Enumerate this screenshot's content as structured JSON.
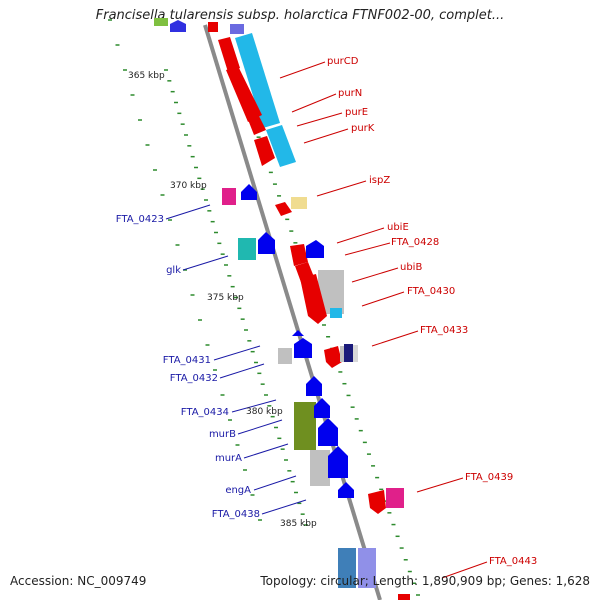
{
  "title": "Francisella tularensis subsp. holarctica FTNF002-00, complet...",
  "accession_label": "Accession: NC_009749",
  "summary_label": "Topology: circular; Length: 1,890,909 bp; Genes: 1,628",
  "colors": {
    "backbone": "#8a8a8a",
    "tick": "#2e8b2e",
    "label_red": "#cc0000",
    "label_blue": "#1a1aa6",
    "red": "#e60000",
    "blue": "#0000ee",
    "cyan": "#22b8e8",
    "magenta": "#e0208a",
    "teal": "#20b8b0",
    "olive": "#6f8f20",
    "grey": "#c0c0c0",
    "yellow": "#f0dc90",
    "steel": "#3f7fb8"
  },
  "kbp_labels": [
    "365 kbp",
    "370 kbp",
    "375 kbp",
    "380 kbp",
    "385 kbp"
  ],
  "gene_labels_right": [
    "purCD",
    "purN",
    "purE",
    "purK",
    "ispZ",
    "ubiE",
    "FTA_0428",
    "ubiB",
    "FTA_0430",
    "FTA_0433",
    "FTA_0439",
    "FTA_0443"
  ],
  "gene_labels_left": [
    "FTA_0423",
    "glk",
    "FTA_0431",
    "FTA_0432",
    "FTA_0434",
    "murB",
    "murA",
    "engA",
    "FTA_0438"
  ]
}
